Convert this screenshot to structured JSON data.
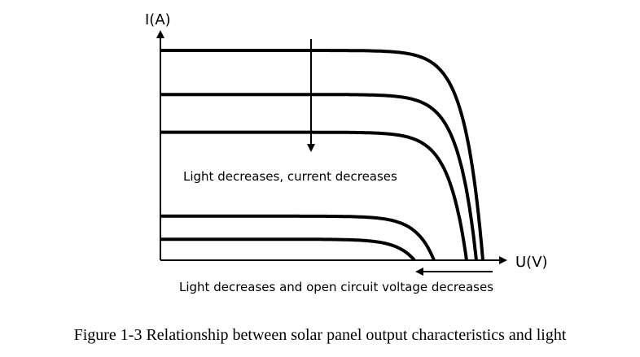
{
  "chart_data": {
    "type": "line",
    "ylabel": "I(A)",
    "xlabel": "U(V)",
    "caption": "Figure 1-3 Relationship between solar panel output characteristics and light",
    "annotations": {
      "current": "Light decreases, current decreases",
      "voltage": "Light decreases and open circuit voltage decreases"
    },
    "xlim": [
      0,
      1
    ],
    "ylim": [
      0,
      1
    ],
    "grid": false,
    "legend": "none",
    "curves": [
      {
        "isc": 1.0,
        "voc": 0.99
      },
      {
        "isc": 0.79,
        "voc": 0.97
      },
      {
        "isc": 0.61,
        "voc": 0.94
      },
      {
        "isc": 0.21,
        "voc": 0.84
      },
      {
        "isc": 0.1,
        "voc": 0.78
      }
    ]
  },
  "colors": {
    "ink": "#000000",
    "background": "#ffffff"
  }
}
